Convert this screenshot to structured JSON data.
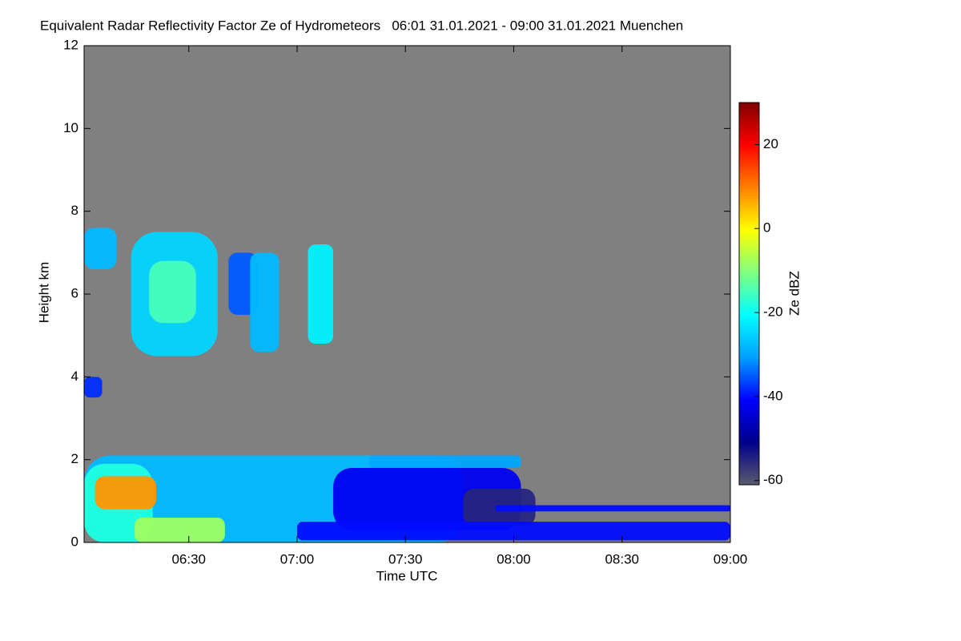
{
  "chart_data": {
    "type": "heatmap",
    "title": "Equivalent Radar Reflectivity Factor Ze of Hydrometeors   06:01 31.01.2021 - 09:00 31.01.2021 Muenchen",
    "x_label": "Time UTC",
    "y_label": "Height km",
    "colorbar_label": "Ze dBZ",
    "xlim": [
      361,
      540
    ],
    "xticks": [
      {
        "value": 390,
        "label": "06:30"
      },
      {
        "value": 420,
        "label": "07:00"
      },
      {
        "value": 450,
        "label": "07:30"
      },
      {
        "value": 480,
        "label": "08:00"
      },
      {
        "value": 510,
        "label": "08:30"
      },
      {
        "value": 540,
        "label": "09:00"
      }
    ],
    "ylim": [
      0,
      12
    ],
    "yticks": [
      0,
      2,
      4,
      6,
      8,
      10,
      12
    ],
    "clim": [
      -61,
      30
    ],
    "cticks": [
      -60,
      -40,
      -20,
      0,
      20
    ],
    "background_color": "#808080",
    "colormap": [
      "#5a5a6e",
      "#00008b",
      "#0000ff",
      "#00a0ff",
      "#00ffff",
      "#80ff80",
      "#ffff00",
      "#ff8000",
      "#ff0000",
      "#800000"
    ],
    "regions": [
      {
        "x": [
          361,
          466
        ],
        "y": [
          0,
          2.1
        ],
        "value": -28
      },
      {
        "x": [
          440,
          482
        ],
        "y": [
          1.8,
          2.1
        ],
        "value": -30
      },
      {
        "x": [
          430,
          482
        ],
        "y": [
          0.3,
          1.8
        ],
        "value": -42
      },
      {
        "x": [
          466,
          486
        ],
        "y": [
          0.4,
          1.3
        ],
        "value": -55
      },
      {
        "x": [
          420,
          540
        ],
        "y": [
          0.05,
          0.5
        ],
        "value": -40
      },
      {
        "x": [
          475,
          540
        ],
        "y": [
          0.75,
          0.9
        ],
        "value": -40
      },
      {
        "x": [
          361,
          380
        ],
        "y": [
          0,
          1.9
        ],
        "value": -18
      },
      {
        "x": [
          375,
          400
        ],
        "y": [
          0,
          0.6
        ],
        "value": -8
      },
      {
        "x": [
          364,
          381
        ],
        "y": [
          0.8,
          1.6
        ],
        "value": 8
      },
      {
        "x": [
          361,
          370
        ],
        "y": [
          6.6,
          7.6
        ],
        "value": -28
      },
      {
        "x": [
          374,
          398
        ],
        "y": [
          4.5,
          7.5
        ],
        "value": -25
      },
      {
        "x": [
          379,
          392
        ],
        "y": [
          5.3,
          6.8
        ],
        "value": -15
      },
      {
        "x": [
          401,
          409
        ],
        "y": [
          5.5,
          7.0
        ],
        "value": -35
      },
      {
        "x": [
          407,
          415
        ],
        "y": [
          4.6,
          7.0
        ],
        "value": -28
      },
      {
        "x": [
          423,
          430
        ],
        "y": [
          4.8,
          7.2
        ],
        "value": -22
      },
      {
        "x": [
          361,
          366
        ],
        "y": [
          3.5,
          4.0
        ],
        "value": -38
      }
    ]
  }
}
